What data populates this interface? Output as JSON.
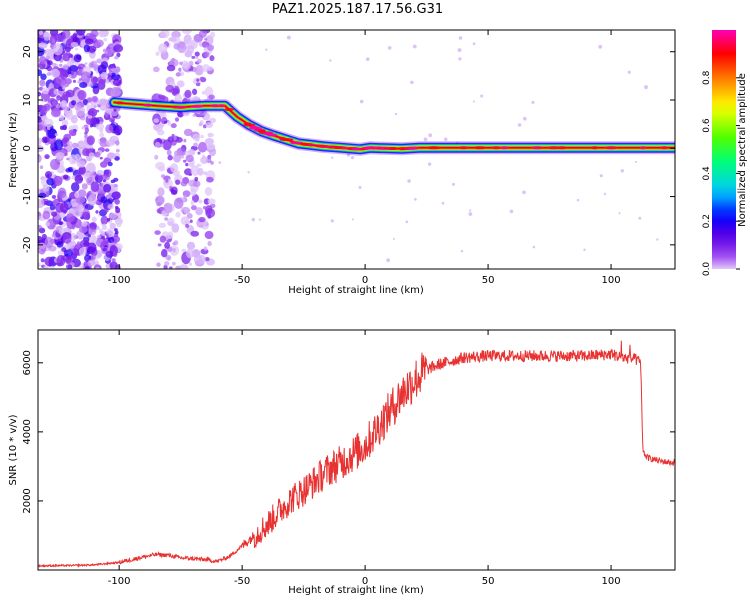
{
  "title": "PAZ1.2025.187.17.56.G31",
  "colorbar": {
    "label": "Normalized spectral amplitude",
    "ticks": [
      "0.0",
      "0.2",
      "0.4",
      "0.6",
      "0.8"
    ],
    "tick_values": [
      0.0,
      0.2,
      0.4,
      0.6,
      0.8
    ],
    "range": [
      0,
      1
    ]
  },
  "chart_data": [
    {
      "type": "heatmap",
      "xlabel": "Height of straight line (km)",
      "ylabel": "Frequency (Hz)",
      "xlim": [
        -133,
        126
      ],
      "ylim": [
        -25,
        24.5
      ],
      "x_ticks": [
        -100,
        -50,
        0,
        50,
        100
      ],
      "y_ticks": [
        -20,
        -10,
        0,
        10,
        20
      ],
      "ridge": {
        "x": [
          -102,
          -95,
          -85,
          -75,
          -65,
          -57,
          -52,
          -47,
          -42,
          -37,
          -32,
          -27,
          -22,
          -17,
          -12,
          -7,
          -2,
          2,
          8,
          15,
          22,
          40,
          60,
          80,
          100,
          126
        ],
        "freq": [
          9.5,
          9.2,
          8.8,
          8.5,
          8.8,
          8.8,
          6.5,
          4.8,
          3.5,
          2.6,
          1.8,
          1.0,
          0.7,
          0.4,
          0.2,
          0.0,
          -0.2,
          0.1,
          0.0,
          -0.1,
          0.1,
          0.1,
          0.1,
          0.1,
          0.1,
          0.1
        ]
      },
      "noise_regions": [
        {
          "x_range": [
            -133,
            -100
          ],
          "freq_range": [
            -25,
            24.5
          ],
          "density": 0.9
        },
        {
          "x_range": [
            -85,
            -62
          ],
          "freq_range": [
            -25,
            24.5
          ],
          "density": 0.35
        }
      ]
    },
    {
      "type": "line",
      "xlabel": "Height of straight line (km)",
      "ylabel": "SNR (10 * v/v)",
      "xlim": [
        -133,
        126
      ],
      "ylim": [
        0,
        6950
      ],
      "x_ticks": [
        -100,
        -50,
        0,
        50,
        100
      ],
      "y_ticks": [
        2000,
        4000,
        6000
      ],
      "color": "#e83232",
      "series": [
        {
          "x": [
            -133,
            -120,
            -110,
            -100,
            -95,
            -90,
            -85,
            -80,
            -75,
            -70,
            -65,
            -60,
            -55,
            -50,
            -45,
            -40,
            -35,
            -30,
            -25,
            -20,
            -15,
            -10,
            -5,
            0,
            5,
            10,
            15,
            20,
            25,
            30,
            35,
            40,
            50,
            60,
            70,
            80,
            90,
            100,
            105,
            110,
            112,
            113,
            115,
            120,
            126
          ],
          "values": [
            120,
            130,
            150,
            220,
            300,
            380,
            450,
            430,
            350,
            330,
            300,
            250,
            400,
            700,
            1000,
            1300,
            1700,
            2050,
            2300,
            2600,
            2900,
            3100,
            3350,
            3600,
            4100,
            4600,
            5100,
            5500,
            5800,
            5950,
            6050,
            6150,
            6200,
            6200,
            6200,
            6200,
            6200,
            6250,
            6150,
            6100,
            6000,
            3400,
            3250,
            3150,
            3100
          ]
        }
      ]
    }
  ]
}
